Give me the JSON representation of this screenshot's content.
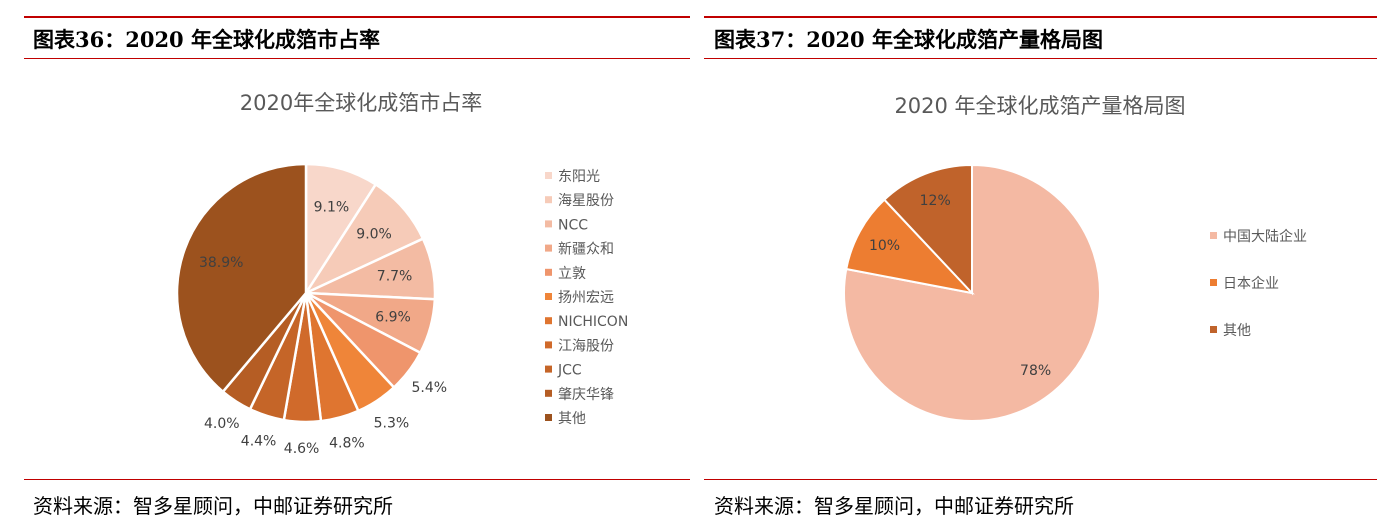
{
  "left": {
    "figure_title": "图表36：2020 年全球化成箔市占率",
    "source": "资料来源：智多星顾问，中邮证券研究所"
  },
  "right": {
    "figure_title": "图表37：2020  年全球化成箔产量格局图",
    "source": "资料来源：智多星顾问，中邮证券研究所"
  },
  "chart_data": [
    {
      "type": "pie",
      "title": "2020年全球化成箔市占率",
      "legend_position": "right",
      "categories": [
        "东阳光",
        "海星股份",
        "NCC",
        "新疆众和",
        "立敦",
        "扬州宏远",
        "NICHICON",
        "江海股份",
        "JCC",
        "肇庆华锋",
        "其他"
      ],
      "values": [
        9.1,
        9.0,
        7.7,
        6.9,
        5.4,
        5.3,
        4.8,
        4.6,
        4.4,
        4.0,
        38.9
      ],
      "labels": [
        "9.1%",
        "9.0%",
        "7.7%",
        "6.9%",
        "5.4%",
        "5.3%",
        "4.8%",
        "4.6%",
        "4.4%",
        "4.0%",
        "38.9%"
      ],
      "colors": [
        "#f8d7ca",
        "#f6cbb8",
        "#f3bba3",
        "#f1a888",
        "#ef956c",
        "#ef8539",
        "#df7530",
        "#d06a2b",
        "#c56528",
        "#b55d24",
        "#9c521e"
      ]
    },
    {
      "type": "pie",
      "title": "2020 年全球化成箔产量格局图",
      "legend_position": "right",
      "categories": [
        "中国大陆企业",
        "日本企业",
        "其他"
      ],
      "values": [
        78,
        10,
        12
      ],
      "labels": [
        "78%",
        "10%",
        "12%"
      ],
      "colors": [
        "#f4b9a3",
        "#ed7d31",
        "#c0632b"
      ]
    }
  ]
}
